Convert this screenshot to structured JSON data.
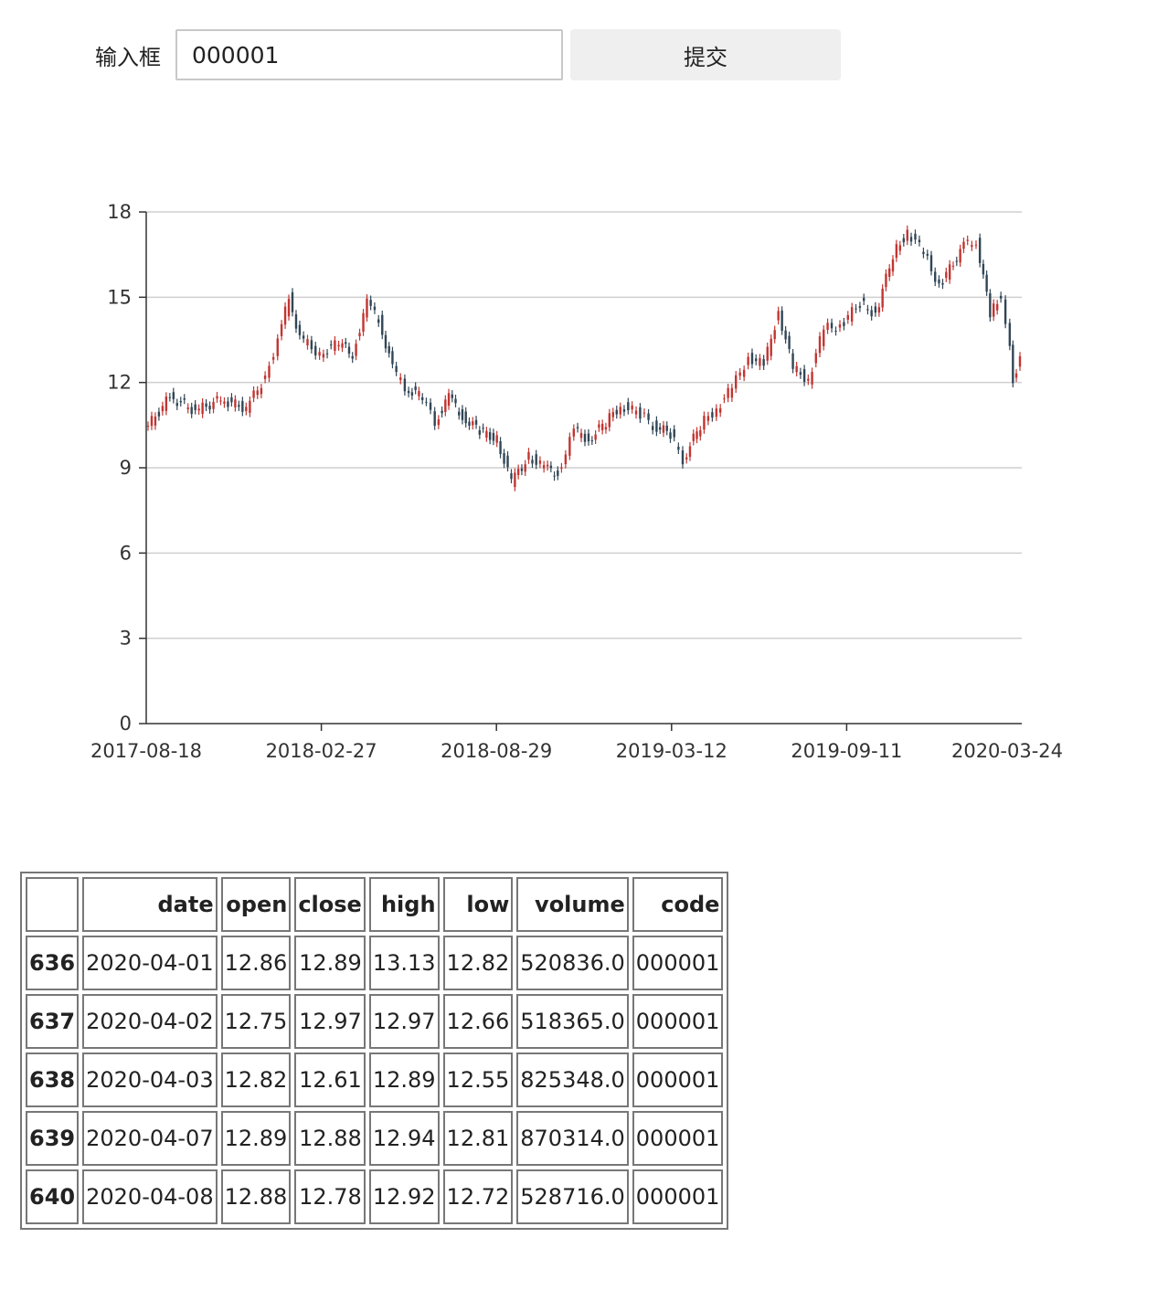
{
  "form": {
    "label": "输入框",
    "input_value": "000001",
    "submit_label": "提交"
  },
  "chart_data": {
    "type": "candlestick",
    "title": "",
    "xlabel": "",
    "ylabel": "",
    "ylim": [
      0,
      18
    ],
    "yticks": [
      "0",
      "3",
      "6",
      "9",
      "12",
      "15",
      "18"
    ],
    "xticks": [
      "2017-08-18",
      "2018-02-27",
      "2018-08-29",
      "2019-03-12",
      "2019-09-11",
      "2020-03-24"
    ],
    "grid": "horizontal",
    "up_color": "#c23531",
    "down_color": "#314656",
    "series": [
      {
        "x": "2017-08-18",
        "y": 10.3
      },
      {
        "x": "2017-09-15",
        "y": 11.5
      },
      {
        "x": "2017-10-13",
        "y": 11.0
      },
      {
        "x": "2017-11-10",
        "y": 11.4
      },
      {
        "x": "2017-12-08",
        "y": 11.1
      },
      {
        "x": "2017-12-29",
        "y": 12.2
      },
      {
        "x": "2018-01-12",
        "y": 13.5
      },
      {
        "x": "2018-01-24",
        "y": 15.0
      },
      {
        "x": "2018-02-05",
        "y": 13.6
      },
      {
        "x": "2018-02-27",
        "y": 13.0
      },
      {
        "x": "2018-03-20",
        "y": 13.4
      },
      {
        "x": "2018-04-04",
        "y": 13.0
      },
      {
        "x": "2018-04-20",
        "y": 14.8
      },
      {
        "x": "2018-05-03",
        "y": 14.2
      },
      {
        "x": "2018-05-18",
        "y": 12.5
      },
      {
        "x": "2018-06-01",
        "y": 11.8
      },
      {
        "x": "2018-06-20",
        "y": 11.5
      },
      {
        "x": "2018-07-04",
        "y": 10.6
      },
      {
        "x": "2018-07-19",
        "y": 11.5
      },
      {
        "x": "2018-08-03",
        "y": 10.8
      },
      {
        "x": "2018-08-22",
        "y": 10.3
      },
      {
        "x": "2018-09-10",
        "y": 10.0
      },
      {
        "x": "2018-09-26",
        "y": 8.5
      },
      {
        "x": "2018-10-15",
        "y": 9.4
      },
      {
        "x": "2018-11-01",
        "y": 9.0
      },
      {
        "x": "2018-11-16",
        "y": 8.8
      },
      {
        "x": "2018-12-04",
        "y": 10.3
      },
      {
        "x": "2018-12-20",
        "y": 10.0
      },
      {
        "x": "2019-01-08",
        "y": 10.6
      },
      {
        "x": "2019-01-24",
        "y": 11.2
      },
      {
        "x": "2019-02-15",
        "y": 10.9
      },
      {
        "x": "2019-03-01",
        "y": 10.5
      },
      {
        "x": "2019-03-20",
        "y": 10.2
      },
      {
        "x": "2019-04-03",
        "y": 9.3
      },
      {
        "x": "2019-04-22",
        "y": 10.5
      },
      {
        "x": "2019-05-10",
        "y": 11.1
      },
      {
        "x": "2019-05-27",
        "y": 11.8
      },
      {
        "x": "2019-06-14",
        "y": 12.9
      },
      {
        "x": "2019-07-01",
        "y": 12.6
      },
      {
        "x": "2019-07-17",
        "y": 14.5
      },
      {
        "x": "2019-08-02",
        "y": 12.5
      },
      {
        "x": "2019-08-19",
        "y": 12.1
      },
      {
        "x": "2019-09-05",
        "y": 13.9
      },
      {
        "x": "2019-09-23",
        "y": 14.0
      },
      {
        "x": "2019-10-15",
        "y": 14.8
      },
      {
        "x": "2019-11-01",
        "y": 14.4
      },
      {
        "x": "2019-11-20",
        "y": 16.5
      },
      {
        "x": "2019-12-06",
        "y": 17.3
      },
      {
        "x": "2019-12-24",
        "y": 16.6
      },
      {
        "x": "2020-01-10",
        "y": 15.4
      },
      {
        "x": "2020-02-06",
        "y": 16.8
      },
      {
        "x": "2020-02-20",
        "y": 17.0
      },
      {
        "x": "2020-03-06",
        "y": 14.4
      },
      {
        "x": "2020-03-18",
        "y": 15.1
      },
      {
        "x": "2020-03-24",
        "y": 14.2
      },
      {
        "x": "2020-03-31",
        "y": 12.1
      },
      {
        "x": "2020-04-08",
        "y": 12.8
      }
    ]
  },
  "table": {
    "columns": [
      "date",
      "open",
      "close",
      "high",
      "low",
      "volume",
      "code"
    ],
    "rows": [
      {
        "index": "636",
        "cells": [
          "2020-04-01",
          "12.86",
          "12.89",
          "13.13",
          "12.82",
          "520836.0",
          "000001"
        ]
      },
      {
        "index": "637",
        "cells": [
          "2020-04-02",
          "12.75",
          "12.97",
          "12.97",
          "12.66",
          "518365.0",
          "000001"
        ]
      },
      {
        "index": "638",
        "cells": [
          "2020-04-03",
          "12.82",
          "12.61",
          "12.89",
          "12.55",
          "825348.0",
          "000001"
        ]
      },
      {
        "index": "639",
        "cells": [
          "2020-04-07",
          "12.89",
          "12.88",
          "12.94",
          "12.81",
          "870314.0",
          "000001"
        ]
      },
      {
        "index": "640",
        "cells": [
          "2020-04-08",
          "12.88",
          "12.78",
          "12.92",
          "12.72",
          "528716.0",
          "000001"
        ]
      }
    ]
  }
}
